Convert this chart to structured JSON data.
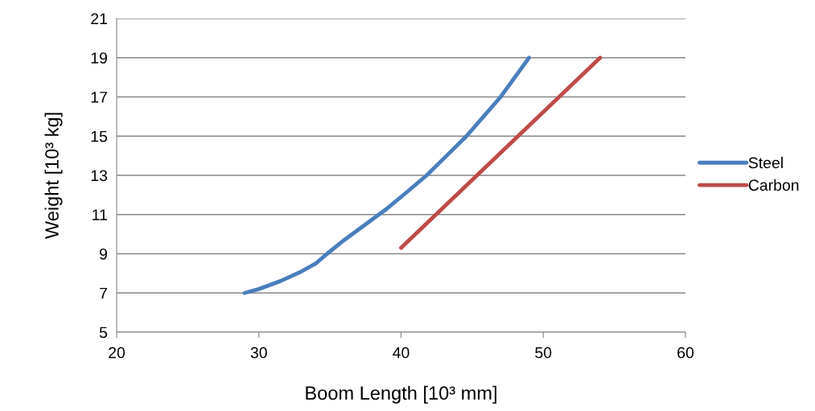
{
  "chart_data": {
    "type": "line",
    "xlabel": "Boom Length [10³ mm]",
    "ylabel": "Weight [10³ kg]",
    "xlim": [
      20,
      60
    ],
    "xticks": [
      20,
      30,
      40,
      50,
      60
    ],
    "ylim": [
      5,
      21
    ],
    "yticks": [
      5,
      7,
      9,
      11,
      13,
      15,
      17,
      19,
      21
    ],
    "grid": "y",
    "legend": "right",
    "marker": "none",
    "line_style": "solid",
    "series": [
      {
        "name": "Steel",
        "color": "#4a7ebb",
        "x": [
          29,
          30,
          31.5,
          33,
          34,
          34.8,
          36,
          37.5,
          39,
          40.5,
          41.8,
          43.2,
          44.6,
          45.8,
          47,
          48,
          49
        ],
        "values": [
          7,
          7.2,
          7.6,
          8.1,
          8.5,
          9,
          9.7,
          10.5,
          11.3,
          12.2,
          13,
          14,
          15,
          16,
          17,
          18,
          19
        ]
      },
      {
        "name": "Carbon",
        "color": "#be4b48",
        "x": [
          40,
          54
        ],
        "values": [
          9.3,
          19
        ]
      }
    ]
  }
}
